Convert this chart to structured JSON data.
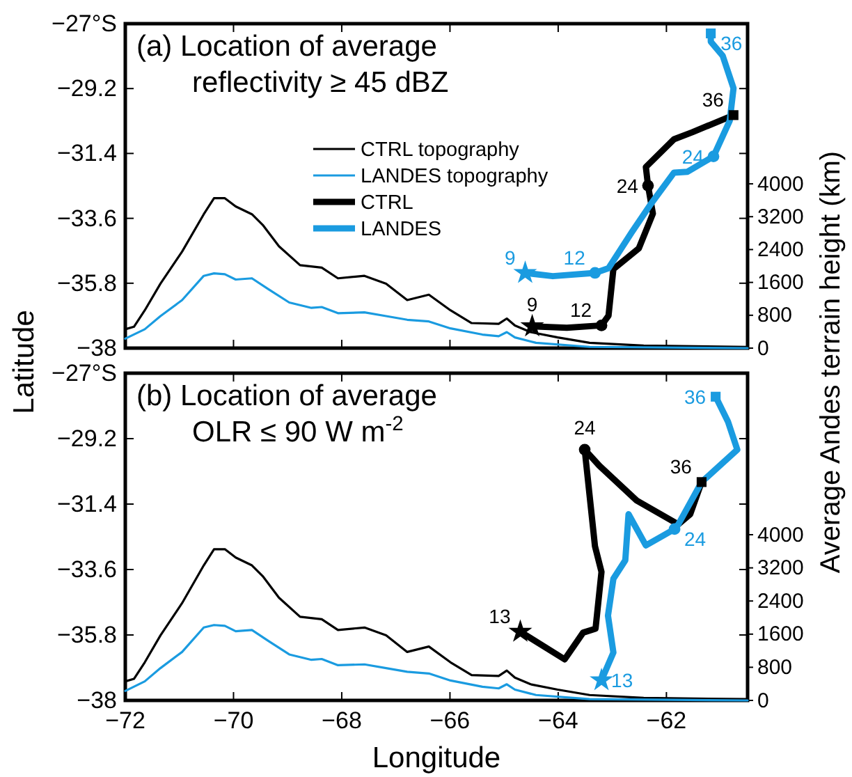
{
  "chart_data": [
    {
      "type": "line",
      "title": "(a) Location of average\nreflectivity ≥ 45 dBZ",
      "ylabel": "Latitude",
      "y2label": "Average Andes terrain height (km)",
      "xlim": [
        -72,
        -60.5
      ],
      "xticks": [
        -72,
        -70,
        -68,
        -66,
        -64,
        -62
      ],
      "ylim": [
        -38,
        -27
      ],
      "yticks": [
        -38,
        -35.8,
        -33.6,
        -31.4,
        -29.2,
        {
          "value": -27,
          "label": "−27°S"
        }
      ],
      "y2lim": [
        0,
        7900
      ],
      "y2ticks": [
        0,
        800,
        1600,
        2400,
        3200,
        4000
      ],
      "tick_labels": "y",
      "legend": "center",
      "annotations": [
        {
          "text": "9",
          "x": -64.48,
          "y": -37.26
        },
        {
          "text": "12",
          "x": -63.2,
          "y": -37.23
        },
        {
          "text": "24",
          "x": -62.34,
          "y": -32.49
        },
        {
          "text": "36",
          "x": -60.76,
          "y": -30.1
        },
        {
          "text": "9",
          "x": -64.61,
          "y": -35.45
        },
        {
          "text": "12",
          "x": -63.32,
          "y": -35.45
        },
        {
          "text": "24",
          "x": -61.13,
          "y": -31.5
        },
        {
          "text": "36",
          "x": -61.18,
          "y": -27.33
        }
      ],
      "series": [
        {
          "name": "CTRL topography",
          "type": "line",
          "axis": "y2",
          "color": "#000000",
          "x": [
            -72.0,
            -71.84,
            -71.64,
            -71.35,
            -70.95,
            -70.55,
            -70.36,
            -70.16,
            -69.96,
            -69.66,
            -69.46,
            -69.16,
            -68.77,
            -68.37,
            -68.07,
            -67.58,
            -67.18,
            -66.79,
            -66.39,
            -65.99,
            -65.6,
            -65.1,
            -64.95,
            -64.8,
            -64.51,
            -64.01,
            -63.42,
            -62.42,
            -60.5
          ],
          "values": [
            460,
            520,
            920,
            1570,
            2350,
            3260,
            3650,
            3650,
            3450,
            3260,
            3000,
            2480,
            2020,
            1960,
            1700,
            1760,
            1570,
            1170,
            1300,
            920,
            610,
            590,
            720,
            550,
            390,
            260,
            130,
            60,
            30
          ]
        },
        {
          "name": "LANDES topography",
          "type": "line",
          "axis": "y2",
          "color": "#1a9be0",
          "x": [
            -72.0,
            -71.64,
            -71.35,
            -70.95,
            -70.55,
            -70.36,
            -70.16,
            -69.96,
            -69.66,
            -69.35,
            -68.97,
            -68.56,
            -68.37,
            -68.07,
            -67.58,
            -67.18,
            -66.79,
            -66.39,
            -65.99,
            -65.4,
            -65.1,
            -64.95,
            -64.8,
            -64.41,
            -63.42,
            -60.5
          ],
          "values": [
            230,
            460,
            780,
            1170,
            1760,
            1820,
            1800,
            1670,
            1700,
            1430,
            1110,
            980,
            1000,
            850,
            870,
            780,
            690,
            650,
            480,
            330,
            290,
            390,
            260,
            130,
            30,
            0
          ]
        },
        {
          "name": "CTRL",
          "type": "line",
          "color": "#000000",
          "x": [
            -64.48,
            -63.84,
            -63.2,
            -63.07,
            -62.98,
            -62.51,
            -62.25,
            -62.34,
            -62.38,
            -61.86,
            -61.52,
            -60.76
          ],
          "values": [
            -37.26,
            -37.31,
            -37.23,
            -36.9,
            -35.32,
            -34.62,
            -33.44,
            -32.49,
            -31.86,
            -30.92,
            -30.68,
            -30.1
          ]
        },
        {
          "name": "LANDES",
          "type": "line",
          "color": "#1a9be0",
          "x": [
            -64.61,
            -64.1,
            -63.32,
            -63.07,
            -62.64,
            -62.29,
            -61.86,
            -61.61,
            -61.13,
            -60.83,
            -60.76,
            -60.96,
            -61.18,
            -61.18
          ],
          "values": [
            -35.45,
            -35.56,
            -35.45,
            -35.29,
            -34.07,
            -33.12,
            -32.05,
            -32.02,
            -31.5,
            -30.29,
            -29.19,
            -28.09,
            -27.61,
            -27.33
          ]
        },
        {
          "type": "scatter",
          "marker": "star",
          "color": "#000000",
          "x": [
            -64.48
          ],
          "values": [
            -37.26
          ]
        },
        {
          "type": "scatter",
          "marker": "circle",
          "color": "#000000",
          "x": [
            -63.2,
            -62.34
          ],
          "values": [
            -37.23,
            -32.49
          ]
        },
        {
          "type": "scatter",
          "marker": "square",
          "color": "#000000",
          "x": [
            -60.76
          ],
          "values": [
            -30.1
          ]
        },
        {
          "type": "scatter",
          "marker": "star",
          "color": "#1a9be0",
          "x": [
            -64.61
          ],
          "values": [
            -35.45
          ]
        },
        {
          "type": "scatter",
          "marker": "circle",
          "color": "#1a9be0",
          "x": [
            -63.32,
            -61.13
          ],
          "values": [
            -35.45,
            -31.5
          ]
        },
        {
          "type": "scatter",
          "marker": "square",
          "color": "#1a9be0",
          "x": [
            -61.18
          ],
          "values": [
            -27.33
          ]
        }
      ]
    },
    {
      "type": "line",
      "title": "(b) Location of average\nOLR ≤ 90 W m$^{-2}$",
      "xlabel": "Longitude",
      "xlim": [
        -72,
        -60.5
      ],
      "xticks": [
        -72,
        -70,
        -68,
        -66,
        -64,
        -62
      ],
      "ylim": [
        -38,
        -27
      ],
      "yticks": [
        -38,
        -35.8,
        -33.6,
        -31.4,
        -29.2,
        {
          "value": -27,
          "label": "−27°S"
        }
      ],
      "y2lim": [
        0,
        7900
      ],
      "y2ticks": [
        0,
        800,
        1600,
        2400,
        3200,
        4000
      ],
      "annotations": [
        {
          "text": "13",
          "x": -64.7,
          "y": -35.69
        },
        {
          "text": "24",
          "x": -63.51,
          "y": -29.57
        },
        {
          "text": "36",
          "x": -61.35,
          "y": -30.66
        },
        {
          "text": "13",
          "x": -63.2,
          "y": -37.32
        },
        {
          "text": "24",
          "x": -61.85,
          "y": -32.24
        },
        {
          "text": "36",
          "x": -61.09,
          "y": -27.79
        }
      ],
      "series": [
        {
          "type": "line",
          "axis": "y2",
          "color": "#000000",
          "x": [
            -72.0,
            -71.84,
            -71.64,
            -71.35,
            -70.95,
            -70.55,
            -70.36,
            -70.16,
            -69.96,
            -69.66,
            -69.46,
            -69.16,
            -68.77,
            -68.37,
            -68.07,
            -67.58,
            -67.18,
            -66.79,
            -66.39,
            -65.99,
            -65.6,
            -65.1,
            -64.95,
            -64.8,
            -64.51,
            -64.01,
            -63.42,
            -62.42,
            -60.5
          ],
          "values": [
            460,
            520,
            920,
            1570,
            2350,
            3260,
            3650,
            3650,
            3450,
            3260,
            3000,
            2480,
            2020,
            1960,
            1700,
            1760,
            1570,
            1170,
            1300,
            920,
            610,
            590,
            720,
            550,
            390,
            260,
            130,
            60,
            30
          ]
        },
        {
          "type": "line",
          "axis": "y2",
          "color": "#1a9be0",
          "x": [
            -72.0,
            -71.64,
            -71.35,
            -70.95,
            -70.55,
            -70.36,
            -70.16,
            -69.96,
            -69.66,
            -69.35,
            -68.97,
            -68.56,
            -68.37,
            -68.07,
            -67.58,
            -67.18,
            -66.79,
            -66.39,
            -65.99,
            -65.4,
            -65.1,
            -64.95,
            -64.8,
            -64.41,
            -63.42,
            -60.5
          ],
          "values": [
            230,
            460,
            780,
            1170,
            1760,
            1820,
            1800,
            1670,
            1700,
            1430,
            1110,
            980,
            1000,
            850,
            870,
            780,
            690,
            650,
            480,
            330,
            290,
            390,
            260,
            130,
            30,
            0
          ]
        },
        {
          "type": "line",
          "color": "#000000",
          "x": [
            -64.7,
            -63.88,
            -63.54,
            -63.31,
            -63.2,
            -63.32,
            -63.51,
            -63.24,
            -62.55,
            -61.78,
            -61.56,
            -61.35
          ],
          "values": [
            -35.69,
            -36.62,
            -35.72,
            -35.59,
            -33.68,
            -32.82,
            -29.57,
            -30.11,
            -31.28,
            -32.08,
            -31.74,
            -30.66
          ]
        },
        {
          "type": "line",
          "color": "#1a9be0",
          "x": [
            -63.2,
            -62.98,
            -63.08,
            -62.98,
            -62.76,
            -62.7,
            -62.38,
            -62.04,
            -61.85,
            -61.78,
            -61.35,
            -60.69,
            -60.86,
            -61.09
          ],
          "values": [
            -37.32,
            -36.39,
            -35.15,
            -33.91,
            -33.29,
            -31.74,
            -32.79,
            -32.44,
            -32.24,
            -32.08,
            -30.66,
            -29.57,
            -28.64,
            -27.79
          ]
        },
        {
          "type": "scatter",
          "marker": "star",
          "color": "#000000",
          "x": [
            -64.7
          ],
          "values": [
            -35.69
          ]
        },
        {
          "type": "scatter",
          "marker": "circle",
          "color": "#000000",
          "x": [
            -63.51
          ],
          "values": [
            -29.57
          ]
        },
        {
          "type": "scatter",
          "marker": "square",
          "color": "#000000",
          "x": [
            -61.35
          ],
          "values": [
            -30.66
          ]
        },
        {
          "type": "scatter",
          "marker": "star",
          "color": "#1a9be0",
          "x": [
            -63.2
          ],
          "values": [
            -37.32
          ]
        },
        {
          "type": "scatter",
          "marker": "circle",
          "color": "#1a9be0",
          "x": [
            -61.85
          ],
          "values": [
            -32.24
          ]
        },
        {
          "type": "scatter",
          "marker": "square",
          "color": "#1a9be0",
          "x": [
            -61.09
          ],
          "values": [
            -27.79
          ]
        }
      ]
    }
  ]
}
